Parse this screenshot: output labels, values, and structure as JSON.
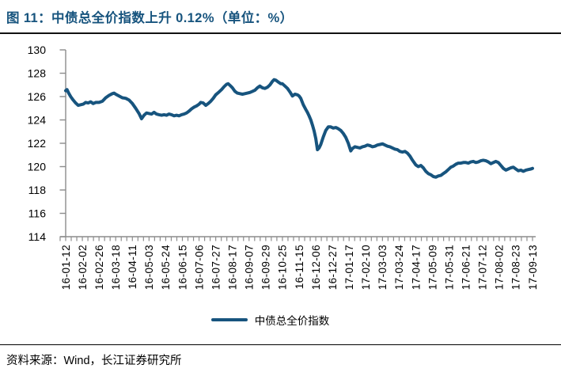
{
  "page": {
    "title": "图 11：中债总全价指数上升 0.12%（单位：%）",
    "source_note": "资料来源：Wind，长江证券研究所"
  },
  "colors": {
    "accent_blue": "#17547E",
    "line_blue": "#17547E",
    "axis_gray": "#8C8C8C",
    "text_black": "#000000"
  },
  "chart_data": {
    "type": "line",
    "title": "图 11：中债总全价指数上升 0.12%（单位：%）",
    "grid": false,
    "legend_position": "bottom-center",
    "ylim": [
      114,
      130
    ],
    "y_ticks": [
      130,
      128,
      126,
      124,
      122,
      120,
      118,
      116,
      114
    ],
    "x_tick_labels": [
      "16-01-12",
      "16-02-02",
      "16-02-26",
      "16-03-18",
      "16-04-11",
      "16-05-03",
      "16-05-24",
      "16-06-15",
      "16-07-06",
      "16-07-27",
      "16-08-17",
      "16-09-07",
      "16-09-29",
      "16-10-25",
      "16-11-15",
      "16-12-06",
      "16-12-27",
      "17-01-17",
      "17-02-10",
      "17-03-03",
      "17-03-24",
      "17-04-17",
      "17-05-09",
      "17-05-31",
      "17-06-21",
      "17-07-12",
      "17-08-02",
      "17-08-23",
      "17-09-13"
    ],
    "series": [
      {
        "name": "中债总全价指数",
        "points": [
          [
            0,
            126.5
          ],
          [
            0.08,
            126.6
          ],
          [
            0.18,
            126.3
          ],
          [
            0.3,
            126.0
          ],
          [
            0.45,
            125.7
          ],
          [
            0.6,
            125.45
          ],
          [
            0.75,
            125.25
          ],
          [
            0.9,
            125.3
          ],
          [
            1.05,
            125.35
          ],
          [
            1.2,
            125.5
          ],
          [
            1.35,
            125.45
          ],
          [
            1.5,
            125.55
          ],
          [
            1.65,
            125.4
          ],
          [
            1.8,
            125.5
          ],
          [
            2.0,
            125.5
          ],
          [
            2.2,
            125.6
          ],
          [
            2.4,
            125.9
          ],
          [
            2.6,
            126.1
          ],
          [
            2.8,
            126.25
          ],
          [
            2.9,
            126.3
          ],
          [
            3.0,
            126.2
          ],
          [
            3.2,
            126.05
          ],
          [
            3.4,
            125.9
          ],
          [
            3.6,
            125.85
          ],
          [
            3.8,
            125.7
          ],
          [
            4.0,
            125.4
          ],
          [
            4.2,
            125.0
          ],
          [
            4.4,
            124.55
          ],
          [
            4.55,
            124.1
          ],
          [
            4.7,
            124.4
          ],
          [
            4.85,
            124.6
          ],
          [
            5.0,
            124.55
          ],
          [
            5.15,
            124.5
          ],
          [
            5.3,
            124.65
          ],
          [
            5.45,
            124.5
          ],
          [
            5.6,
            124.45
          ],
          [
            5.75,
            124.4
          ],
          [
            5.9,
            124.45
          ],
          [
            6.05,
            124.4
          ],
          [
            6.2,
            124.5
          ],
          [
            6.35,
            124.45
          ],
          [
            6.5,
            124.35
          ],
          [
            6.65,
            124.4
          ],
          [
            6.8,
            124.35
          ],
          [
            6.95,
            124.45
          ],
          [
            7.1,
            124.5
          ],
          [
            7.25,
            124.6
          ],
          [
            7.4,
            124.75
          ],
          [
            7.55,
            124.95
          ],
          [
            7.7,
            125.1
          ],
          [
            7.85,
            125.2
          ],
          [
            8.0,
            125.35
          ],
          [
            8.1,
            125.5
          ],
          [
            8.25,
            125.45
          ],
          [
            8.4,
            125.25
          ],
          [
            8.55,
            125.4
          ],
          [
            8.7,
            125.6
          ],
          [
            8.85,
            125.85
          ],
          [
            9.0,
            126.15
          ],
          [
            9.2,
            126.4
          ],
          [
            9.35,
            126.6
          ],
          [
            9.5,
            126.85
          ],
          [
            9.65,
            127.05
          ],
          [
            9.75,
            127.1
          ],
          [
            9.9,
            126.9
          ],
          [
            10.0,
            126.75
          ],
          [
            10.15,
            126.45
          ],
          [
            10.3,
            126.3
          ],
          [
            10.45,
            126.25
          ],
          [
            10.6,
            126.2
          ],
          [
            10.75,
            126.25
          ],
          [
            10.9,
            126.3
          ],
          [
            11.05,
            126.35
          ],
          [
            11.2,
            126.45
          ],
          [
            11.35,
            126.55
          ],
          [
            11.5,
            126.75
          ],
          [
            11.65,
            126.9
          ],
          [
            11.8,
            126.75
          ],
          [
            11.95,
            126.7
          ],
          [
            12.1,
            126.8
          ],
          [
            12.25,
            127.0
          ],
          [
            12.4,
            127.3
          ],
          [
            12.5,
            127.45
          ],
          [
            12.6,
            127.4
          ],
          [
            12.75,
            127.25
          ],
          [
            12.9,
            127.1
          ],
          [
            13.0,
            127.1
          ],
          [
            13.15,
            126.9
          ],
          [
            13.3,
            126.7
          ],
          [
            13.45,
            126.4
          ],
          [
            13.6,
            126.05
          ],
          [
            13.75,
            126.2
          ],
          [
            13.9,
            126.15
          ],
          [
            14.0,
            126.05
          ],
          [
            14.1,
            125.85
          ],
          [
            14.25,
            125.3
          ],
          [
            14.4,
            124.9
          ],
          [
            14.5,
            124.65
          ],
          [
            14.6,
            124.35
          ],
          [
            14.7,
            124.0
          ],
          [
            14.8,
            123.55
          ],
          [
            14.9,
            123.05
          ],
          [
            15.0,
            122.4
          ],
          [
            15.1,
            121.45
          ],
          [
            15.2,
            121.6
          ],
          [
            15.3,
            121.9
          ],
          [
            15.45,
            122.55
          ],
          [
            15.6,
            123.1
          ],
          [
            15.75,
            123.4
          ],
          [
            15.9,
            123.4
          ],
          [
            16.05,
            123.3
          ],
          [
            16.2,
            123.35
          ],
          [
            16.35,
            123.25
          ],
          [
            16.5,
            123.1
          ],
          [
            16.65,
            122.85
          ],
          [
            16.8,
            122.5
          ],
          [
            16.95,
            122.0
          ],
          [
            17.1,
            121.35
          ],
          [
            17.2,
            121.55
          ],
          [
            17.35,
            121.7
          ],
          [
            17.5,
            121.65
          ],
          [
            17.65,
            121.6
          ],
          [
            17.8,
            121.7
          ],
          [
            17.95,
            121.75
          ],
          [
            18.1,
            121.85
          ],
          [
            18.25,
            121.8
          ],
          [
            18.4,
            121.7
          ],
          [
            18.55,
            121.75
          ],
          [
            18.7,
            121.85
          ],
          [
            18.85,
            121.9
          ],
          [
            19.0,
            121.95
          ],
          [
            19.15,
            121.85
          ],
          [
            19.3,
            121.75
          ],
          [
            19.45,
            121.7
          ],
          [
            19.6,
            121.6
          ],
          [
            19.75,
            121.5
          ],
          [
            19.9,
            121.45
          ],
          [
            20.05,
            121.3
          ],
          [
            20.2,
            121.25
          ],
          [
            20.35,
            121.3
          ],
          [
            20.5,
            121.15
          ],
          [
            20.65,
            120.9
          ],
          [
            20.8,
            120.55
          ],
          [
            21.0,
            120.15
          ],
          [
            21.15,
            120.0
          ],
          [
            21.3,
            120.1
          ],
          [
            21.45,
            119.9
          ],
          [
            21.6,
            119.6
          ],
          [
            21.75,
            119.4
          ],
          [
            21.9,
            119.3
          ],
          [
            22.05,
            119.15
          ],
          [
            22.2,
            119.1
          ],
          [
            22.35,
            119.2
          ],
          [
            22.5,
            119.25
          ],
          [
            22.65,
            119.4
          ],
          [
            22.8,
            119.55
          ],
          [
            22.95,
            119.75
          ],
          [
            23.1,
            119.95
          ],
          [
            23.25,
            120.05
          ],
          [
            23.4,
            120.2
          ],
          [
            23.55,
            120.3
          ],
          [
            23.7,
            120.3
          ],
          [
            23.85,
            120.35
          ],
          [
            24.0,
            120.35
          ],
          [
            24.15,
            120.3
          ],
          [
            24.3,
            120.4
          ],
          [
            24.45,
            120.45
          ],
          [
            24.6,
            120.35
          ],
          [
            24.75,
            120.4
          ],
          [
            24.9,
            120.5
          ],
          [
            25.05,
            120.55
          ],
          [
            25.2,
            120.5
          ],
          [
            25.35,
            120.4
          ],
          [
            25.5,
            120.25
          ],
          [
            25.65,
            120.35
          ],
          [
            25.8,
            120.45
          ],
          [
            25.95,
            120.35
          ],
          [
            26.1,
            120.1
          ],
          [
            26.25,
            119.85
          ],
          [
            26.4,
            119.7
          ],
          [
            26.55,
            119.8
          ],
          [
            26.7,
            119.9
          ],
          [
            26.85,
            119.95
          ],
          [
            27.0,
            119.8
          ],
          [
            27.15,
            119.65
          ],
          [
            27.3,
            119.7
          ],
          [
            27.45,
            119.6
          ],
          [
            27.6,
            119.7
          ],
          [
            27.75,
            119.75
          ],
          [
            27.9,
            119.8
          ],
          [
            28.0,
            119.85
          ]
        ]
      }
    ]
  }
}
